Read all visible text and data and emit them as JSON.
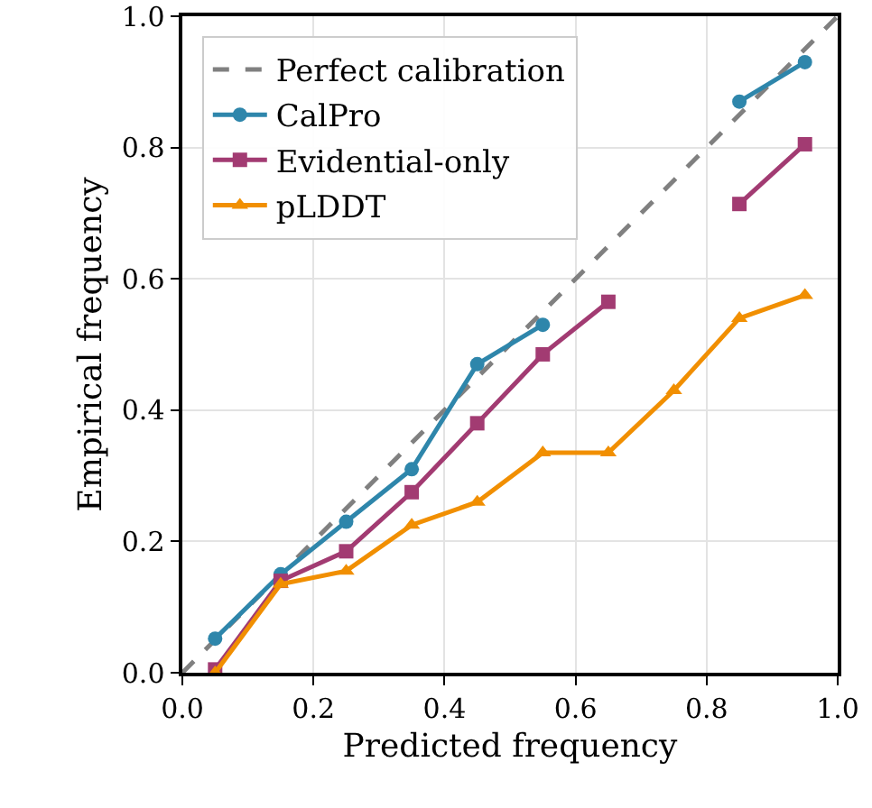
{
  "chart_data": {
    "type": "line",
    "xlabel": "Predicted frequency",
    "ylabel": "Empirical frequency",
    "xlim": [
      0,
      1
    ],
    "ylim": [
      0,
      1
    ],
    "xticks": [
      {
        "value": 0,
        "label": "0.0"
      },
      0.2,
      0.4,
      0.6,
      0.8,
      {
        "value": 1,
        "label": "1.0"
      }
    ],
    "yticks": [
      {
        "value": 0,
        "label": "0.0"
      },
      0.2,
      0.4,
      0.6,
      0.8,
      {
        "value": 1,
        "label": "1.0"
      }
    ],
    "grid": true,
    "legend": "top left",
    "series": [
      {
        "name": "Perfect calibration",
        "color": "#808080",
        "x": [
          0,
          1
        ],
        "values": [
          0,
          1
        ],
        "line_style": "dashed",
        "marker": "none"
      },
      {
        "name": "CalPro",
        "color": "#2e86ab",
        "x": [
          0.05,
          0.15,
          0.25,
          0.35,
          0.45,
          0.55,
          0.65,
          0.75,
          0.85,
          0.95
        ],
        "values": [
          0.052,
          0.15,
          0.23,
          0.31,
          0.47,
          0.53,
          null,
          null,
          0.87,
          0.93
        ],
        "marker": "circle",
        "line_style": "solid"
      },
      {
        "name": "Evidential-only",
        "color": "#a23b72",
        "x": [
          0.05,
          0.15,
          0.25,
          0.35,
          0.45,
          0.55,
          0.65,
          0.75,
          0.85,
          0.95
        ],
        "values": [
          0.005,
          0.14,
          0.185,
          0.275,
          0.38,
          0.485,
          0.565,
          null,
          0.714,
          0.805
        ],
        "marker": "square",
        "line_style": "solid"
      },
      {
        "name": "pLDDT",
        "color": "#f18f01",
        "x": [
          0.05,
          0.15,
          0.25,
          0.35,
          0.45,
          0.55,
          0.65,
          0.75,
          0.85,
          0.95
        ],
        "values": [
          0.0,
          0.135,
          0.155,
          0.225,
          0.26,
          0.335,
          0.335,
          0.43,
          0.54,
          0.575
        ],
        "marker": "triangle",
        "line_style": "solid"
      }
    ]
  }
}
